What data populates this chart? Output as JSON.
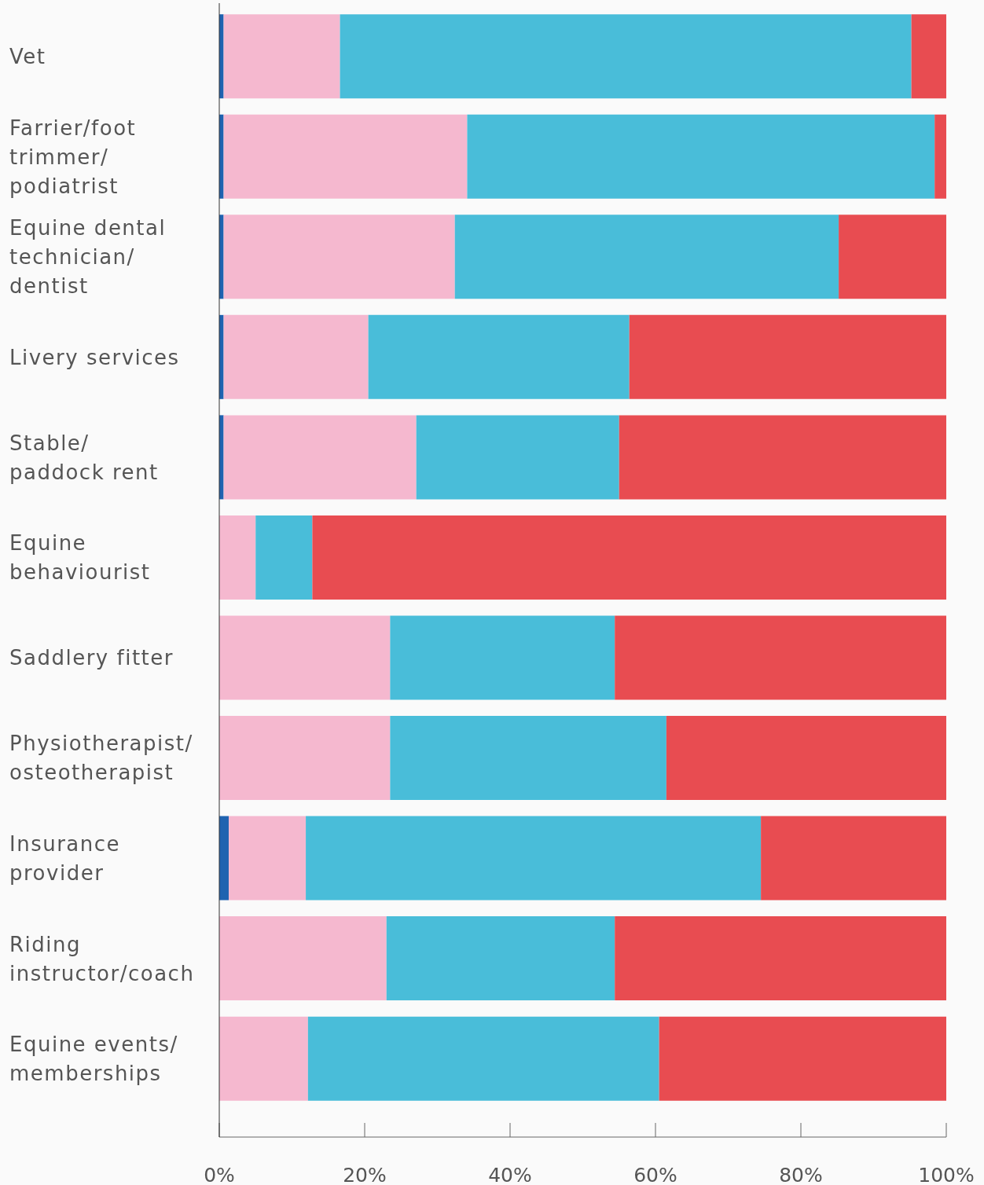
{
  "chart_data": {
    "type": "bar",
    "orientation": "horizontal",
    "stacked": true,
    "categories": [
      "Vet",
      "Farrier/foot trimmer/ podiatrist",
      "Equine dental technician/ dentist",
      "Livery services",
      "Stable/ paddock rent",
      "Equine behaviourist",
      "Saddlery fitter",
      "Physiotherapist/ osteotherapist",
      "Insurance provider",
      "Riding instructor/coach",
      "Equine events/ memberships"
    ],
    "series": [
      {
        "color": "#1f63b0",
        "values": [
          0.6,
          0.6,
          0.6,
          0.6,
          0.6,
          null,
          null,
          null,
          1.3,
          null,
          null
        ]
      },
      {
        "color": "#f5b8cf",
        "values": [
          16.0,
          33.5,
          31.8,
          19.9,
          26.5,
          5.0,
          23.5,
          23.5,
          10.6,
          23.0,
          12.2
        ]
      },
      {
        "color": "#49bdd9",
        "values": [
          78.6,
          64.3,
          52.8,
          35.9,
          27.9,
          7.8,
          30.9,
          38.0,
          62.6,
          31.4,
          48.3
        ]
      },
      {
        "color": "#e84c51",
        "values": [
          4.8,
          1.6,
          14.8,
          43.6,
          45.0,
          87.2,
          45.6,
          38.5,
          25.5,
          45.6,
          39.5
        ]
      }
    ],
    "xlim": [
      0,
      100
    ],
    "xticks": [
      {
        "value": 0,
        "label": "0%"
      },
      {
        "value": 20,
        "label": "20%"
      },
      {
        "value": 40,
        "label": "40%"
      },
      {
        "value": 60,
        "label": "60%"
      },
      {
        "value": 80,
        "label": "80%"
      },
      {
        "value": 100,
        "label": "100%"
      }
    ]
  }
}
